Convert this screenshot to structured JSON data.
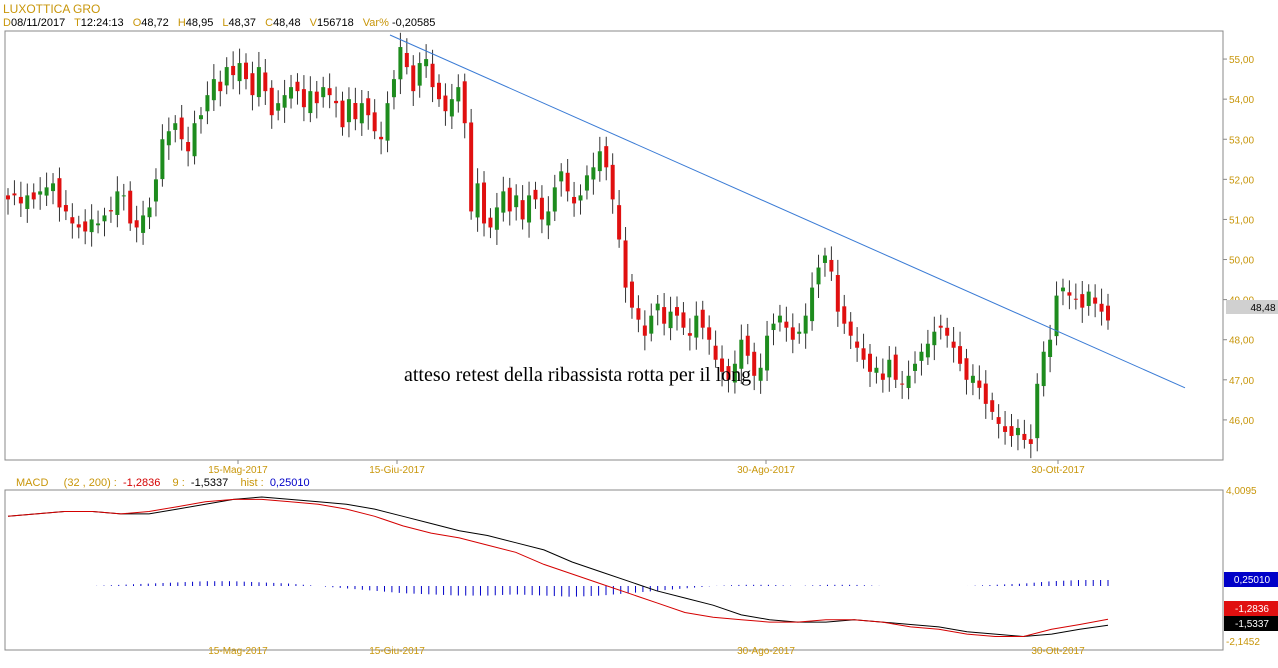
{
  "header": {
    "title": "LUXOTTICA GRO",
    "date_label": "D",
    "date": "08/11/2017",
    "time_label": "T",
    "time": "12:24:13",
    "open_label": "O",
    "open": "48,72",
    "high_label": "H",
    "high": "48,95",
    "low_label": "L",
    "low": "48,37",
    "close_label": "C",
    "close": "48,48",
    "vol_label": "V",
    "volume": "156718",
    "var_label": "Var%",
    "var": "-0,20585"
  },
  "annotation": "atteso retest della ribassista rotta per il long",
  "price_axis": {
    "ticks": [
      "55,00",
      "54,00",
      "53,00",
      "52,00",
      "51,00",
      "50,00",
      "49,00",
      "48,00",
      "47,00",
      "46,00"
    ],
    "last_price_label": "48,48"
  },
  "date_axis": [
    "15-Mag-2017",
    "15-Giu-2017",
    "30-Ago-2017",
    "30-Ott-2017"
  ],
  "macd": {
    "label": "MACD",
    "params": "(32 , 200) :",
    "macd_value": "-1,2836",
    "signal_label": "9 :",
    "signal_value": "-1,5337",
    "hist_label": "hist :",
    "hist_value": "0,25010",
    "axis_top": "4,0095",
    "axis_bottom": "-2,1452",
    "hist_box": "0,25010",
    "macd_box": "-1,2836",
    "signal_box": "-1,5337"
  },
  "colors": {
    "up": "#1e8c1e",
    "down": "#e01010",
    "trendline": "#3a7bd5",
    "axis_text": "#c8960a",
    "macd_line": "#d40000",
    "signal_line": "#000000",
    "hist_bar": "#0000c8"
  },
  "chart_data": [
    {
      "type": "candlestick",
      "title": "LUXOTTICA GRO",
      "ylim": [
        45.0,
        55.7
      ],
      "x_ticks": [
        "15-Mag-2017",
        "15-Giu-2017",
        "30-Ago-2017",
        "30-Ott-2017"
      ],
      "close": [
        51.5,
        51.6,
        51.4,
        51.6,
        51.5,
        51.7,
        51.8,
        51.9,
        51.3,
        51.2,
        50.9,
        50.8,
        50.7,
        51.0,
        50.9,
        51.1,
        51.2,
        51.7,
        51.6,
        50.9,
        50.8,
        51.1,
        51.3,
        52.0,
        53.0,
        53.2,
        53.4,
        53.0,
        52.7,
        53.4,
        53.6,
        54.1,
        54.5,
        54.2,
        54.8,
        54.6,
        54.9,
        54.5,
        54.1,
        54.8,
        54.2,
        53.6,
        53.9,
        54.1,
        54.3,
        54.2,
        53.8,
        54.2,
        53.9,
        54.3,
        54.1,
        53.9,
        53.3,
        54.0,
        53.5,
        53.9,
        53.6,
        53.2,
        53.0,
        53.9,
        54.5,
        55.3,
        54.8,
        54.2,
        54.9,
        55.0,
        54.3,
        54.0,
        53.7,
        54.0,
        54.3,
        53.4,
        51.2,
        51.9,
        50.9,
        50.8,
        51.3,
        51.7,
        51.2,
        51.6,
        51.0,
        51.6,
        51.5,
        51.0,
        51.2,
        51.8,
        52.2,
        51.7,
        51.4,
        51.6,
        52.1,
        52.3,
        52.7,
        52.3,
        51.5,
        50.5,
        49.3,
        48.8,
        48.5,
        48.1,
        48.6,
        48.9,
        48.4,
        48.7,
        48.6,
        48.3,
        48.1,
        48.6,
        48.3,
        48.0,
        47.5,
        47.2,
        47.0,
        47.4,
        48.0,
        47.6,
        47.1,
        47.3,
        48.1,
        48.4,
        48.6,
        48.3,
        48.0,
        48.2,
        48.6,
        49.3,
        49.8,
        50.1,
        49.7,
        48.7,
        48.4,
        48.1,
        47.8,
        47.5,
        47.2,
        47.3,
        47.0,
        47.5,
        47.0,
        46.9,
        47.1,
        47.4,
        47.7,
        47.9,
        48.2,
        48.3,
        48.1,
        47.8,
        47.4,
        47.0,
        47.1,
        46.8,
        46.4,
        46.2,
        45.9,
        45.7,
        45.6,
        45.8,
        45.5,
        45.4,
        46.9,
        47.7,
        48.0,
        49.1,
        49.3,
        49.1,
        49.0,
        48.8,
        49.2,
        48.9,
        48.7,
        48.48
      ],
      "highlight_last": "48,48",
      "trendline": {
        "from": {
          "x": "15-Giu-2017",
          "y": 55.6
        },
        "to": {
          "x": "end",
          "y": 46.8
        }
      }
    },
    {
      "type": "line",
      "title": "MACD (32 , 200)",
      "ylim": [
        -2.1452,
        4.0095
      ],
      "series": [
        {
          "name": "MACD",
          "values": [
            3.0,
            3.1,
            3.2,
            3.2,
            3.1,
            3.2,
            3.4,
            3.6,
            3.7,
            3.7,
            3.6,
            3.5,
            3.3,
            3.0,
            2.6,
            2.3,
            2.1,
            1.8,
            1.5,
            1.0,
            0.6,
            0.2,
            -0.2,
            -0.6,
            -1.0,
            -1.2,
            -1.3,
            -1.4,
            -1.4,
            -1.3,
            -1.3,
            -1.4,
            -1.6,
            -1.7,
            -1.9,
            -2.0,
            -2.0,
            -1.7,
            -1.5,
            -1.28
          ]
        },
        {
          "name": "9",
          "values": [
            3.0,
            3.1,
            3.2,
            3.2,
            3.1,
            3.1,
            3.3,
            3.5,
            3.7,
            3.8,
            3.7,
            3.6,
            3.5,
            3.3,
            3.0,
            2.7,
            2.4,
            2.2,
            1.9,
            1.6,
            1.1,
            0.7,
            0.3,
            -0.1,
            -0.4,
            -0.7,
            -1.1,
            -1.3,
            -1.4,
            -1.4,
            -1.3,
            -1.4,
            -1.5,
            -1.6,
            -1.8,
            -1.9,
            -2.0,
            -1.9,
            -1.7,
            -1.53
          ]
        },
        {
          "name": "hist",
          "values": [
            0.0,
            0.0,
            0.0,
            0.0,
            0.05,
            0.1,
            0.15,
            0.2,
            0.2,
            0.15,
            0.1,
            0.0,
            -0.1,
            -0.2,
            -0.3,
            -0.35,
            -0.4,
            -0.4,
            -0.35,
            -0.4,
            -0.45,
            -0.4,
            -0.3,
            -0.2,
            -0.1,
            0.0,
            0.05,
            0.05,
            0.0,
            0.05,
            0.05,
            0.0,
            0.0,
            0.0,
            0.0,
            0.05,
            0.1,
            0.2,
            0.25,
            0.25
          ]
        }
      ]
    }
  ]
}
